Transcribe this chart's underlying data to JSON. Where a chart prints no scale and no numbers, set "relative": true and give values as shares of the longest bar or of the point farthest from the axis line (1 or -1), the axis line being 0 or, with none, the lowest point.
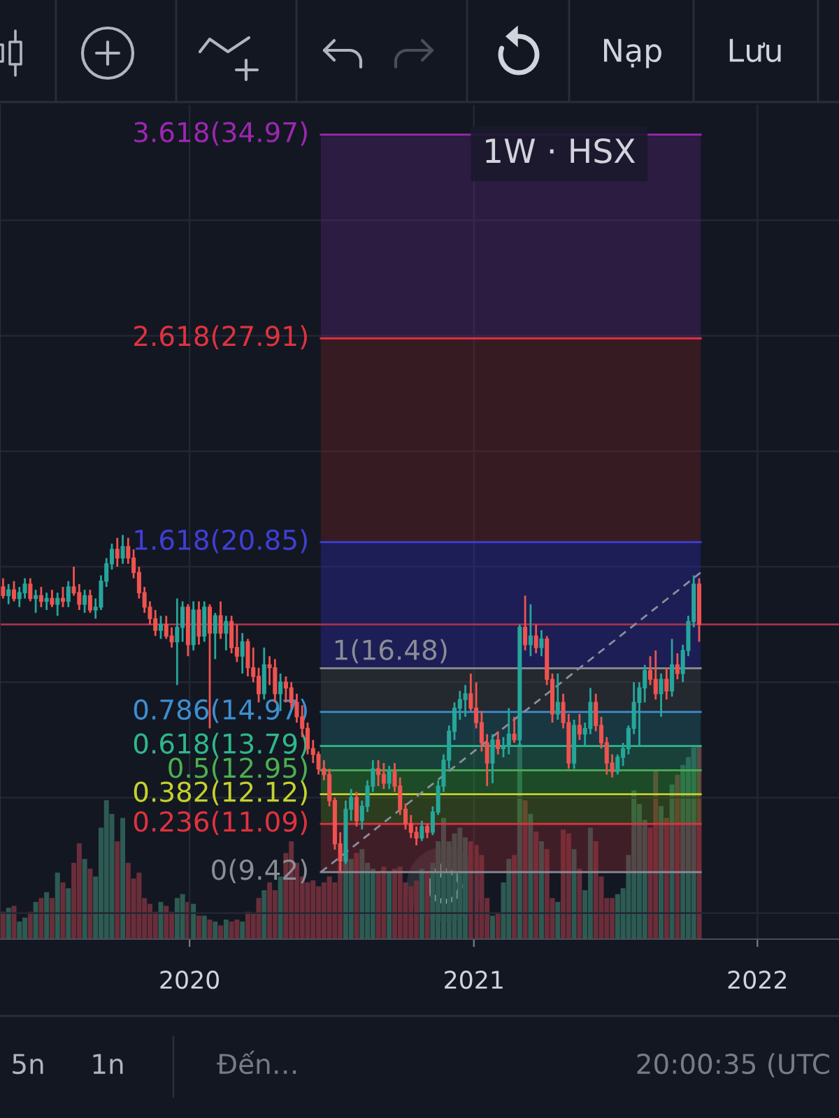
{
  "chart_data": [
    {
      "type": "candlestick",
      "title": "1W · HSX",
      "x": [
        "2019-05-06",
        "2019-05-13",
        "2019-05-20",
        "2019-05-27",
        "2019-06-03",
        "2019-06-10",
        "2019-06-17",
        "2019-06-24",
        "2019-07-01",
        "2019-07-08",
        "2019-07-15",
        "2019-07-22",
        "2019-07-29",
        "2019-08-05",
        "2019-08-12",
        "2019-08-19",
        "2019-08-26",
        "2019-09-02",
        "2019-09-09",
        "2019-09-16",
        "2019-09-23",
        "2019-09-30",
        "2019-10-07",
        "2019-10-14",
        "2019-10-21",
        "2019-10-28",
        "2019-11-04",
        "2019-11-11",
        "2019-11-18",
        "2019-11-25",
        "2019-12-02",
        "2019-12-09",
        "2019-12-16",
        "2019-12-23",
        "2019-12-30",
        "2020-01-06",
        "2020-01-13",
        "2020-01-20",
        "2020-01-27",
        "2020-02-03",
        "2020-02-10",
        "2020-02-17",
        "2020-02-24",
        "2020-03-02",
        "2020-03-09",
        "2020-03-16",
        "2020-03-23",
        "2020-03-30",
        "2020-04-06",
        "2020-04-13",
        "2020-04-20",
        "2020-04-27",
        "2020-05-04",
        "2020-05-11",
        "2020-05-18",
        "2020-05-25",
        "2020-06-01",
        "2020-06-08",
        "2020-06-15",
        "2020-06-22",
        "2020-06-29",
        "2020-07-06",
        "2020-07-13",
        "2020-07-20",
        "2020-07-27",
        "2020-08-03",
        "2020-08-10",
        "2020-08-17",
        "2020-08-24",
        "2020-08-31",
        "2020-09-07",
        "2020-09-14",
        "2020-09-21",
        "2020-09-28",
        "2020-10-05",
        "2020-10-12",
        "2020-10-19",
        "2020-10-26",
        "2020-11-02",
        "2020-11-09",
        "2020-11-16",
        "2020-11-23",
        "2020-11-30",
        "2020-12-07",
        "2020-12-14",
        "2020-12-21",
        "2020-12-28",
        "2021-01-04",
        "2021-01-11",
        "2021-01-18",
        "2021-01-25",
        "2021-02-01",
        "2021-02-08",
        "2021-02-15",
        "2021-02-22",
        "2021-03-01",
        "2021-03-08",
        "2021-03-15",
        "2021-03-22",
        "2021-03-29",
        "2021-04-05",
        "2021-04-12",
        "2021-04-19",
        "2021-04-26",
        "2021-05-03",
        "2021-05-10",
        "2021-05-17",
        "2021-05-24",
        "2021-05-31",
        "2021-06-07",
        "2021-06-14",
        "2021-06-21",
        "2021-06-28",
        "2021-07-05",
        "2021-07-12",
        "2021-07-19",
        "2021-07-26",
        "2021-08-02",
        "2021-08-09",
        "2021-08-16",
        "2021-08-23",
        "2021-08-30",
        "2021-09-06",
        "2021-09-13",
        "2021-09-20",
        "2021-09-27",
        "2021-10-04",
        "2021-10-11",
        "2021-10-18"
      ],
      "ohlc": [
        [
          19.3,
          19.6,
          18.9,
          19.0
        ],
        [
          19.0,
          19.4,
          18.7,
          19.2
        ],
        [
          19.2,
          19.5,
          18.8,
          18.9
        ],
        [
          18.9,
          19.3,
          18.6,
          19.1
        ],
        [
          19.1,
          19.6,
          18.9,
          19.4
        ],
        [
          19.4,
          19.6,
          18.8,
          18.9
        ],
        [
          18.9,
          19.2,
          18.4,
          19.0
        ],
        [
          19.0,
          19.3,
          18.6,
          18.8
        ],
        [
          18.8,
          19.1,
          18.5,
          18.9
        ],
        [
          18.9,
          19.2,
          18.6,
          18.7
        ],
        [
          18.7,
          19.1,
          18.3,
          18.9
        ],
        [
          18.9,
          19.3,
          18.6,
          18.8
        ],
        [
          18.8,
          19.5,
          18.6,
          19.3
        ],
        [
          19.3,
          20.0,
          19.0,
          19.1
        ],
        [
          19.1,
          19.4,
          18.5,
          18.7
        ],
        [
          18.7,
          19.2,
          18.4,
          19.0
        ],
        [
          19.0,
          19.2,
          18.4,
          18.5
        ],
        [
          18.5,
          18.9,
          18.2,
          18.6
        ],
        [
          18.6,
          19.7,
          18.5,
          19.5
        ],
        [
          19.5,
          20.3,
          19.3,
          20.1
        ],
        [
          20.1,
          20.8,
          19.9,
          20.6
        ],
        [
          20.6,
          21.0,
          20.0,
          20.3
        ],
        [
          20.3,
          21.1,
          20.1,
          20.7
        ],
        [
          20.7,
          21.0,
          20.1,
          20.3
        ],
        [
          20.3,
          20.6,
          19.6,
          19.8
        ],
        [
          19.8,
          20.0,
          18.9,
          19.1
        ],
        [
          19.1,
          19.3,
          18.4,
          18.6
        ],
        [
          18.6,
          18.8,
          18.0,
          18.2
        ],
        [
          18.2,
          18.5,
          17.6,
          17.8
        ],
        [
          17.8,
          18.3,
          17.5,
          18.0
        ],
        [
          18.0,
          18.3,
          17.5,
          17.6
        ],
        [
          17.6,
          17.9,
          17.2,
          17.4
        ],
        [
          17.4,
          18.9,
          15.9,
          17.9
        ],
        [
          17.9,
          18.8,
          17.4,
          18.6
        ],
        [
          18.6,
          18.7,
          16.9,
          17.3
        ],
        [
          17.3,
          18.8,
          17.1,
          18.5
        ],
        [
          18.5,
          18.8,
          17.3,
          17.6
        ],
        [
          17.6,
          18.8,
          17.4,
          18.6
        ],
        [
          18.6,
          18.7,
          14.4,
          17.7
        ],
        [
          17.7,
          18.4,
          16.8,
          18.3
        ],
        [
          18.3,
          18.8,
          17.5,
          17.7
        ],
        [
          17.7,
          18.3,
          17.1,
          18.1
        ],
        [
          18.1,
          18.3,
          17.0,
          17.2
        ],
        [
          17.2,
          18.0,
          16.7,
          16.9
        ],
        [
          16.9,
          17.7,
          16.3,
          17.4
        ],
        [
          17.4,
          17.5,
          16.2,
          16.5
        ],
        [
          16.5,
          17.2,
          16.0,
          16.2
        ],
        [
          16.2,
          16.5,
          15.3,
          15.6
        ],
        [
          15.6,
          17.2,
          15.4,
          16.6
        ],
        [
          16.6,
          16.9,
          15.9,
          16.5
        ],
        [
          16.5,
          16.8,
          15.3,
          15.6
        ],
        [
          15.6,
          16.3,
          15.0,
          16.0
        ],
        [
          16.0,
          16.2,
          15.3,
          15.8
        ],
        [
          15.8,
          16.0,
          15.1,
          15.3
        ],
        [
          15.3,
          15.6,
          14.6,
          14.8
        ],
        [
          14.8,
          15.2,
          14.1,
          14.4
        ],
        [
          14.4,
          14.6,
          13.5,
          13.7
        ],
        [
          13.7,
          14.0,
          13.2,
          13.5
        ],
        [
          13.5,
          13.6,
          12.8,
          13.0
        ],
        [
          13.0,
          13.3,
          12.6,
          12.8
        ],
        [
          12.8,
          13.0,
          11.7,
          11.9
        ],
        [
          11.9,
          12.0,
          10.2,
          10.4
        ],
        [
          10.4,
          10.8,
          9.42,
          9.8
        ],
        [
          9.8,
          11.9,
          9.7,
          11.6
        ],
        [
          11.6,
          12.3,
          11.2,
          12.0
        ],
        [
          12.0,
          12.2,
          11.0,
          11.2
        ],
        [
          11.2,
          11.9,
          10.9,
          11.7
        ],
        [
          11.7,
          12.6,
          11.5,
          12.4
        ],
        [
          12.4,
          13.3,
          12.2,
          13.0
        ],
        [
          13.0,
          13.3,
          12.4,
          12.8
        ],
        [
          12.8,
          13.2,
          12.3,
          12.5
        ],
        [
          12.5,
          13.1,
          12.3,
          12.9
        ],
        [
          12.9,
          13.2,
          12.2,
          12.4
        ],
        [
          12.4,
          12.7,
          11.4,
          11.6
        ],
        [
          11.6,
          11.8,
          10.9,
          11.1
        ],
        [
          11.1,
          11.4,
          10.6,
          10.8
        ],
        [
          10.8,
          11.0,
          10.35,
          10.6
        ],
        [
          10.6,
          11.2,
          10.5,
          11.0
        ],
        [
          11.0,
          11.1,
          10.6,
          10.8
        ],
        [
          10.8,
          11.7,
          10.7,
          11.5
        ],
        [
          11.5,
          12.6,
          11.4,
          12.4
        ],
        [
          12.4,
          13.5,
          12.2,
          13.3
        ],
        [
          13.3,
          14.5,
          13.0,
          14.3
        ],
        [
          14.3,
          15.3,
          14.0,
          15.1
        ],
        [
          15.1,
          15.7,
          14.7,
          15.4
        ],
        [
          15.4,
          15.9,
          14.8,
          15.6
        ],
        [
          15.6,
          16.3,
          15.0,
          15.1
        ],
        [
          15.1,
          16.0,
          14.4,
          14.6
        ],
        [
          14.6,
          15.0,
          13.6,
          13.9
        ],
        [
          13.9,
          14.2,
          12.4,
          13.2
        ],
        [
          13.2,
          14.2,
          12.5,
          14.0
        ],
        [
          14.0,
          14.3,
          13.5,
          13.7
        ],
        [
          13.7,
          14.1,
          13.4,
          13.8
        ],
        [
          13.8,
          15.1,
          13.5,
          14.2
        ],
        [
          14.2,
          14.8,
          13.9,
          14.0
        ],
        [
          14.0,
          18.0,
          13.8,
          17.9
        ],
        [
          17.9,
          19.0,
          17.1,
          17.3
        ],
        [
          17.3,
          18.7,
          16.9,
          17.6
        ],
        [
          17.6,
          18.0,
          17.0,
          17.2
        ],
        [
          17.2,
          17.8,
          16.9,
          17.5
        ],
        [
          17.5,
          17.6,
          15.9,
          16.1
        ],
        [
          16.1,
          16.3,
          14.6,
          14.9
        ],
        [
          14.9,
          16.3,
          14.7,
          15.3
        ],
        [
          15.3,
          15.6,
          14.4,
          14.6
        ],
        [
          14.6,
          14.9,
          13.0,
          13.2
        ],
        [
          13.2,
          14.7,
          13.0,
          14.5
        ],
        [
          14.5,
          14.9,
          14.0,
          14.2
        ],
        [
          14.2,
          14.6,
          13.8,
          14.4
        ],
        [
          14.4,
          15.8,
          14.2,
          15.3
        ],
        [
          15.3,
          15.6,
          14.3,
          14.5
        ],
        [
          14.5,
          14.8,
          13.7,
          13.9
        ],
        [
          13.9,
          14.1,
          12.8,
          13.2
        ],
        [
          13.2,
          13.5,
          12.7,
          12.9
        ],
        [
          12.9,
          13.5,
          12.8,
          13.4
        ],
        [
          13.4,
          13.9,
          13.1,
          13.7
        ],
        [
          13.7,
          14.5,
          13.5,
          14.4
        ],
        [
          14.4,
          16.0,
          14.2,
          15.3
        ],
        [
          15.3,
          16.0,
          13.8,
          15.8
        ],
        [
          15.8,
          16.6,
          15.3,
          16.4
        ],
        [
          16.4,
          16.9,
          15.9,
          16.1
        ],
        [
          16.1,
          17.1,
          15.4,
          15.6
        ],
        [
          15.6,
          16.3,
          14.8,
          16.1
        ],
        [
          16.1,
          16.5,
          15.4,
          15.7
        ],
        [
          15.7,
          17.5,
          15.5,
          16.6
        ],
        [
          16.6,
          17.0,
          16.1,
          16.3
        ],
        [
          16.3,
          17.3,
          16.0,
          17.1
        ],
        [
          17.1,
          18.3,
          16.9,
          18.1
        ],
        [
          18.1,
          19.7,
          17.9,
          19.4
        ],
        [
          19.4,
          19.6,
          17.4,
          18.0
        ]
      ],
      "colors": [
        "#ef5350",
        "#26a69a",
        "#ef5350",
        "#26a69a",
        "#26a69a",
        "#ef5350",
        "#26a69a",
        "#ef5350",
        "#26a69a",
        "#ef5350",
        "#26a69a",
        "#ef5350",
        "#26a69a",
        "#ef5350",
        "#ef5350",
        "#26a69a",
        "#ef5350",
        "#26a69a",
        "#26a69a",
        "#26a69a",
        "#26a69a",
        "#ef5350",
        "#26a69a",
        "#ef5350",
        "#ef5350",
        "#ef5350",
        "#ef5350",
        "#ef5350",
        "#ef5350",
        "#26a69a",
        "#ef5350",
        "#ef5350",
        "#26a69a",
        "#26a69a",
        "#ef5350",
        "#26a69a",
        "#ef5350",
        "#26a69a",
        "#ef5350",
        "#26a69a",
        "#ef5350",
        "#26a69a",
        "#ef5350",
        "#ef5350",
        "#26a69a",
        "#ef5350",
        "#ef5350",
        "#ef5350",
        "#26a69a",
        "#ef5350",
        "#ef5350",
        "#26a69a",
        "#ef5350",
        "#ef5350",
        "#ef5350",
        "#ef5350",
        "#ef5350",
        "#ef5350",
        "#ef5350",
        "#ef5350",
        "#ef5350",
        "#ef5350",
        "#ef5350",
        "#26a69a",
        "#26a69a",
        "#ef5350",
        "#26a69a",
        "#26a69a",
        "#26a69a",
        "#ef5350",
        "#ef5350",
        "#26a69a",
        "#ef5350",
        "#ef5350",
        "#ef5350",
        "#ef5350",
        "#ef5350",
        "#26a69a",
        "#ef5350",
        "#26a69a",
        "#26a69a",
        "#26a69a",
        "#26a69a",
        "#26a69a",
        "#26a69a",
        "#26a69a",
        "#ef5350",
        "#ef5350",
        "#ef5350",
        "#ef5350",
        "#26a69a",
        "#ef5350",
        "#26a69a",
        "#26a69a",
        "#ef5350",
        "#26a69a",
        "#ef5350",
        "#26a69a",
        "#ef5350",
        "#26a69a",
        "#ef5350",
        "#ef5350",
        "#26a69a",
        "#ef5350",
        "#ef5350",
        "#26a69a",
        "#ef5350",
        "#26a69a",
        "#26a69a",
        "#ef5350",
        "#ef5350",
        "#ef5350",
        "#ef5350",
        "#26a69a",
        "#26a69a",
        "#26a69a",
        "#26a69a",
        "#26a69a",
        "#26a69a",
        "#ef5350",
        "#ef5350",
        "#26a69a",
        "#ef5350",
        "#26a69a",
        "#ef5350",
        "#26a69a",
        "#26a69a",
        "#26a69a",
        "#ef5350"
      ],
      "series": [
        {
          "type": "line",
          "x": [
            "2020-06-18",
            "2021-10-20"
          ],
          "values": [
            9.42,
            19.8
          ],
          "color": "#8a8f9c",
          "line_style": "dashed"
        }
      ],
      "xlim": [
        "2019-05-02",
        "2022-04-16"
      ],
      "xticks": [
        {
          "value": "2020-01-01",
          "label": "2020"
        },
        {
          "value": "2021-01-01",
          "label": "2021"
        },
        {
          "value": "2022-01-01",
          "label": "2022"
        }
      ],
      "ylim": [
        7.1,
        36.0
      ],
      "yticks": [
        {
          "value": 8,
          "label": null
        },
        {
          "value": 12,
          "label": null
        },
        {
          "value": 16,
          "label": null
        },
        {
          "value": 20,
          "label": null
        },
        {
          "value": 24,
          "label": null
        },
        {
          "value": 28,
          "label": null
        },
        {
          "value": 32,
          "label": null
        }
      ],
      "tick_labels": "x",
      "grid": true,
      "bands": [
        {
          "axis": "y",
          "from": 9.42,
          "to": 11.09,
          "color": "#411e28"
        },
        {
          "axis": "y",
          "from": 11.09,
          "to": 12.12,
          "color": "#2d3c1e"
        },
        {
          "axis": "y",
          "from": 12.12,
          "to": 12.95,
          "color": "#1e4b28"
        },
        {
          "axis": "y",
          "from": 12.95,
          "to": 13.79,
          "color": "#19413a"
        },
        {
          "axis": "y",
          "from": 13.79,
          "to": 14.97,
          "color": "#193741"
        },
        {
          "axis": "y",
          "from": 14.97,
          "to": 16.48,
          "color": "#25282f"
        },
        {
          "axis": "y",
          "from": 16.48,
          "to": 20.85,
          "color": "#1c1e55"
        },
        {
          "axis": "y",
          "from": 20.85,
          "to": 27.91,
          "color": "#371b23"
        },
        {
          "axis": "y",
          "from": 27.91,
          "to": 34.97,
          "color": "#2d1c41"
        }
      ],
      "ref_lines": [
        {
          "axis": "y",
          "value": 34.97,
          "label": "3.618(34.97)",
          "color": "#9c27b0"
        },
        {
          "axis": "y",
          "value": 27.91,
          "label": "2.618(27.91)",
          "color": "#e0323f"
        },
        {
          "axis": "y",
          "value": 20.85,
          "label": "1.618(20.85)",
          "color": "#3f3fd6"
        },
        {
          "axis": "y",
          "value": 16.48,
          "label": "1(16.48)",
          "color": "#8a8d96"
        },
        {
          "axis": "y",
          "value": 14.97,
          "label": "0.786(14.97)",
          "color": "#3d8fd1"
        },
        {
          "axis": "y",
          "value": 13.79,
          "label": "0.618(13.79)",
          "color": "#2fb889"
        },
        {
          "axis": "y",
          "value": 12.95,
          "label": "0.5(12.95)",
          "color": "#4caf50"
        },
        {
          "axis": "y",
          "value": 12.12,
          "label": "0.382(12.12)",
          "color": "#c4d22c"
        },
        {
          "axis": "y",
          "value": 11.09,
          "label": "0.236(11.09)",
          "color": "#e0323f"
        },
        {
          "axis": "y",
          "value": 9.42,
          "label": "0(9.42)",
          "color": "#8a8d96"
        },
        {
          "axis": "y",
          "value": 18.0,
          "color": "#a8324a"
        }
      ],
      "annotations": [
        "Nạp",
        "Lưu",
        "5n",
        "1n",
        "Đến…",
        "20:00:35 (UTC"
      ]
    },
    {
      "type": "bar",
      "relative": true,
      "tick_labels": false,
      "x": [
        "2019-05-06",
        "2019-05-13",
        "2019-05-20",
        "2019-05-27",
        "2019-06-03",
        "2019-06-10",
        "2019-06-17",
        "2019-06-24",
        "2019-07-01",
        "2019-07-08",
        "2019-07-15",
        "2019-07-22",
        "2019-07-29",
        "2019-08-05",
        "2019-08-12",
        "2019-08-19",
        "2019-08-26",
        "2019-09-02",
        "2019-09-09",
        "2019-09-16",
        "2019-09-23",
        "2019-09-30",
        "2019-10-07",
        "2019-10-14",
        "2019-10-21",
        "2019-10-28",
        "2019-11-04",
        "2019-11-11",
        "2019-11-18",
        "2019-11-25",
        "2019-12-02",
        "2019-12-09",
        "2019-12-16",
        "2019-12-23",
        "2019-12-30",
        "2020-01-06",
        "2020-01-13",
        "2020-01-20",
        "2020-01-27",
        "2020-02-03",
        "2020-02-10",
        "2020-02-17",
        "2020-02-24",
        "2020-03-02",
        "2020-03-09",
        "2020-03-16",
        "2020-03-23",
        "2020-03-30",
        "2020-04-06",
        "2020-04-13",
        "2020-04-20",
        "2020-04-27",
        "2020-05-04",
        "2020-05-11",
        "2020-05-18",
        "2020-05-25",
        "2020-06-01",
        "2020-06-08",
        "2020-06-15",
        "2020-06-22",
        "2020-06-29",
        "2020-07-06",
        "2020-07-13",
        "2020-07-20",
        "2020-07-27",
        "2020-08-03",
        "2020-08-10",
        "2020-08-17",
        "2020-08-24",
        "2020-08-31",
        "2020-09-07",
        "2020-09-14",
        "2020-09-21",
        "2020-09-28",
        "2020-10-05",
        "2020-10-12",
        "2020-10-19",
        "2020-10-26",
        "2020-11-02",
        "2020-11-09",
        "2020-11-16",
        "2020-11-23",
        "2020-11-30",
        "2020-12-07",
        "2020-12-14",
        "2020-12-21",
        "2020-12-28",
        "2021-01-04",
        "2021-01-11",
        "2021-01-18",
        "2021-01-25",
        "2021-02-01",
        "2021-02-08",
        "2021-02-15",
        "2021-02-22",
        "2021-03-01",
        "2021-03-08",
        "2021-03-15",
        "2021-03-22",
        "2021-03-29",
        "2021-04-05",
        "2021-04-12",
        "2021-04-19",
        "2021-04-26",
        "2021-05-03",
        "2021-05-10",
        "2021-05-17",
        "2021-05-24",
        "2021-05-31",
        "2021-06-07",
        "2021-06-14",
        "2021-06-21",
        "2021-06-28",
        "2021-07-05",
        "2021-07-12",
        "2021-07-19",
        "2021-07-26",
        "2021-08-02",
        "2021-08-09",
        "2021-08-16",
        "2021-08-23",
        "2021-08-30",
        "2021-09-06",
        "2021-09-13",
        "2021-09-20",
        "2021-09-27",
        "2021-10-04",
        "2021-10-11",
        "2021-10-18"
      ],
      "values": [
        0.14,
        0.16,
        0.17,
        0.09,
        0.11,
        0.14,
        0.19,
        0.21,
        0.24,
        0.21,
        0.34,
        0.29,
        0.26,
        0.39,
        0.49,
        0.41,
        0.36,
        0.32,
        0.57,
        0.71,
        0.64,
        0.5,
        0.62,
        0.39,
        0.31,
        0.34,
        0.21,
        0.18,
        0.14,
        0.19,
        0.17,
        0.14,
        0.21,
        0.23,
        0.19,
        0.18,
        0.12,
        0.12,
        0.1,
        0.09,
        0.07,
        0.1,
        0.09,
        0.1,
        0.09,
        0.14,
        0.13,
        0.21,
        0.25,
        0.29,
        0.25,
        0.32,
        0.44,
        0.5,
        0.39,
        0.32,
        0.29,
        0.3,
        0.27,
        0.29,
        0.32,
        0.29,
        0.39,
        0.46,
        0.41,
        0.44,
        0.46,
        0.39,
        0.36,
        0.34,
        0.37,
        0.34,
        0.36,
        0.37,
        0.29,
        0.27,
        0.3,
        0.36,
        0.34,
        0.39,
        0.5,
        0.62,
        0.5,
        0.54,
        0.57,
        0.52,
        0.5,
        0.48,
        0.43,
        0.21,
        0.12,
        0.13,
        0.29,
        0.41,
        0.43,
        1,
        0.71,
        0.64,
        0.55,
        0.5,
        0.46,
        0.21,
        0.19,
        0.56,
        0.54,
        0.46,
        0.36,
        0.25,
        0.57,
        0.5,
        0.32,
        0.21,
        0.21,
        0.23,
        0.26,
        0.43,
        0.76,
        0.69,
        0.61,
        0.57,
        0.86,
        0.68,
        0.62,
        0.79,
        0.84,
        0.89,
        0.93,
        0.98,
        0.99
      ],
      "colors": [
        "#6a2e3a",
        "#2d5b53",
        "#6a2e3a",
        "#2d5b53",
        "#2d5b53",
        "#6a2e3a",
        "#2d5b53",
        "#6a2e3a",
        "#2d5b53",
        "#6a2e3a",
        "#2d5b53",
        "#6a2e3a",
        "#2d5b53",
        "#6a2e3a",
        "#6a2e3a",
        "#2d5b53",
        "#6a2e3a",
        "#2d5b53",
        "#2d5b53",
        "#2d5b53",
        "#2d5b53",
        "#6a2e3a",
        "#2d5b53",
        "#6a2e3a",
        "#6a2e3a",
        "#6a2e3a",
        "#6a2e3a",
        "#6a2e3a",
        "#6a2e3a",
        "#2d5b53",
        "#6a2e3a",
        "#6a2e3a",
        "#2d5b53",
        "#2d5b53",
        "#6a2e3a",
        "#2d5b53",
        "#6a2e3a",
        "#2d5b53",
        "#6a2e3a",
        "#2d5b53",
        "#6a2e3a",
        "#2d5b53",
        "#6a2e3a",
        "#6a2e3a",
        "#2d5b53",
        "#6a2e3a",
        "#6a2e3a",
        "#6a2e3a",
        "#2d5b53",
        "#6a2e3a",
        "#6a2e3a",
        "#2d5b53",
        "#6a2e3a",
        "#6a2e3a",
        "#6a2e3a",
        "#6a2e3a",
        "#6a2e3a",
        "#6a2e3a",
        "#6a2e3a",
        "#6a2e3a",
        "#6a2e3a",
        "#6a2e3a",
        "#6a2e3a",
        "#2d5b53",
        "#2d5b53",
        "#6a2e3a",
        "#2d5b53",
        "#2d5b53",
        "#2d5b53",
        "#6a2e3a",
        "#6a2e3a",
        "#2d5b53",
        "#6a2e3a",
        "#6a2e3a",
        "#6a2e3a",
        "#6a2e3a",
        "#6a2e3a",
        "#2d5b53",
        "#6a2e3a",
        "#2d5b53",
        "#2d5b53",
        "#2d5b53",
        "#2d5b53",
        "#2d5b53",
        "#2d5b53",
        "#2d5b53",
        "#6a2e3a",
        "#6a2e3a",
        "#6a2e3a",
        "#6a2e3a",
        "#2d5b53",
        "#6a2e3a",
        "#2d5b53",
        "#2d5b53",
        "#6a2e3a",
        "#2d5b53",
        "#6a2e3a",
        "#2d5b53",
        "#6a2e3a",
        "#2d5b53",
        "#6a2e3a",
        "#6a2e3a",
        "#2d5b53",
        "#6a2e3a",
        "#6a2e3a",
        "#2d5b53",
        "#6a2e3a",
        "#2d5b53",
        "#2d5b53",
        "#6a2e3a",
        "#6a2e3a",
        "#6a2e3a",
        "#6a2e3a",
        "#2d5b53",
        "#2d5b53",
        "#2d5b53",
        "#2d5b53",
        "#2d5b53",
        "#2d5b53",
        "#6a2e3a",
        "#6a2e3a",
        "#2d5b53",
        "#6a2e3a",
        "#2d5b53",
        "#6a2e3a",
        "#2d5b53",
        "#2d5b53",
        "#2d5b53",
        "#6a2e3a"
      ],
      "xlim": [
        "2019-05-02",
        "2022-04-16"
      ]
    }
  ]
}
